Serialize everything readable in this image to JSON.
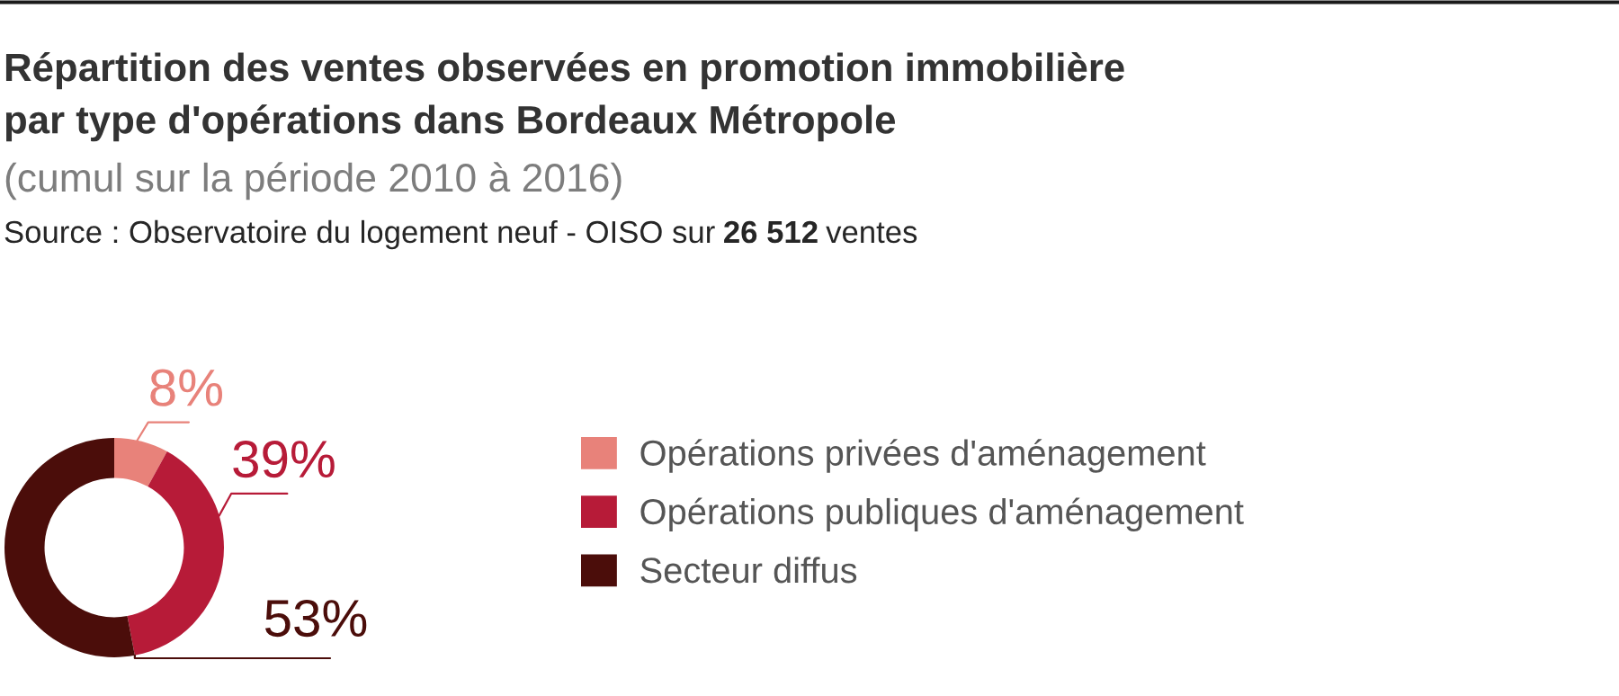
{
  "chart_data": {
    "type": "donut",
    "title": "Répartition des ventes observées en promotion immobilière\npar type d'opérations dans Bordeaux Métropole",
    "subtitle": "(cumul sur la période 2010 à 2016)",
    "annotations": [
      "Source : Observatoire du logement neuf - OISO sur",
      "26 512",
      "ventes"
    ],
    "categories": [
      "Opérations privées d'aménagement",
      "Opérations publiques d'aménagement",
      "Secteur diffus"
    ],
    "values": [
      8,
      39,
      53
    ],
    "colors": [
      "#e8827a",
      "#b71b38",
      "#4b0d0a"
    ],
    "value_labels": [
      "8%",
      "39%",
      "53%"
    ],
    "legend": "right"
  }
}
